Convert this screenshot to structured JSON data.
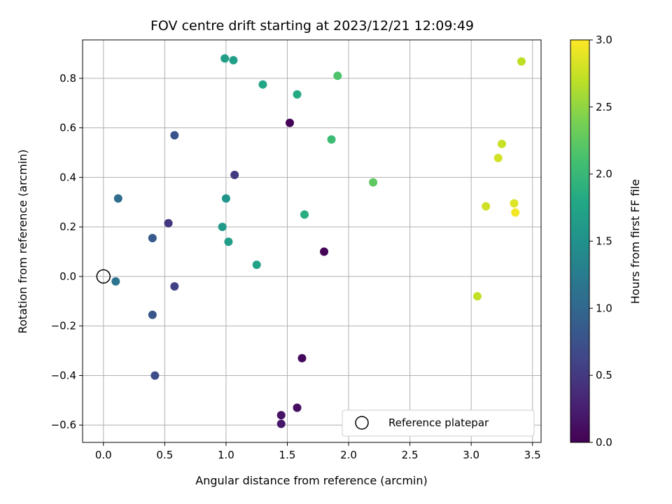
{
  "chart_data": {
    "type": "scatter",
    "title": "FOV centre drift starting at 2023/12/21 12:09:49",
    "xlabel": "Angular distance from reference (arcmin)",
    "ylabel": "Rotation from reference (arcmin)",
    "xlim": [
      -0.17,
      3.57
    ],
    "ylim": [
      -0.67,
      0.955
    ],
    "xticks": [
      0.0,
      0.5,
      1.0,
      1.5,
      2.0,
      2.5,
      3.0,
      3.5
    ],
    "xtick_labels": [
      "0.0",
      "0.5",
      "1.0",
      "1.5",
      "2.0",
      "2.5",
      "3.0",
      "3.5"
    ],
    "yticks": [
      -0.6,
      -0.4,
      -0.2,
      0.0,
      0.2,
      0.4,
      0.6,
      0.8
    ],
    "ytick_labels": [
      "−0.6",
      "−0.4",
      "−0.2",
      "0.0",
      "0.2",
      "0.4",
      "0.6",
      "0.8"
    ],
    "grid": true,
    "legend": {
      "location": "lower-right",
      "entries": [
        "Reference platepar"
      ]
    },
    "colormap": "viridis",
    "colorbar": {
      "label": "Hours from first FF file",
      "range": [
        0.0,
        3.0
      ],
      "ticks": [
        0.0,
        0.5,
        1.0,
        1.5,
        2.0,
        2.5,
        3.0
      ],
      "tick_labels": [
        "0.0",
        "0.5",
        "1.0",
        "1.5",
        "2.0",
        "2.5",
        "3.0"
      ]
    },
    "reference_point": {
      "name": "Reference platepar",
      "x": 0.0,
      "y": 0.0
    },
    "points": [
      {
        "x": 1.52,
        "y": 0.62,
        "c": 0.02
      },
      {
        "x": 1.8,
        "y": 0.1,
        "c": 0.04
      },
      {
        "x": 1.62,
        "y": -0.33,
        "c": 0.07
      },
      {
        "x": 1.58,
        "y": -0.53,
        "c": 0.11
      },
      {
        "x": 1.45,
        "y": -0.56,
        "c": 0.15
      },
      {
        "x": 1.45,
        "y": -0.595,
        "c": 0.19
      },
      {
        "x": 0.53,
        "y": 0.215,
        "c": 0.48
      },
      {
        "x": 1.07,
        "y": 0.41,
        "c": 0.52
      },
      {
        "x": 0.58,
        "y": -0.04,
        "c": 0.58
      },
      {
        "x": 0.42,
        "y": -0.4,
        "c": 0.7
      },
      {
        "x": 0.4,
        "y": -0.155,
        "c": 0.8
      },
      {
        "x": 0.4,
        "y": 0.155,
        "c": 0.85
      },
      {
        "x": 0.58,
        "y": 0.57,
        "c": 0.78
      },
      {
        "x": 0.12,
        "y": 0.315,
        "c": 1.05
      },
      {
        "x": 0.1,
        "y": -0.02,
        "c": 1.15
      },
      {
        "x": 1.0,
        "y": 0.315,
        "c": 1.55
      },
      {
        "x": 0.97,
        "y": 0.2,
        "c": 1.62
      },
      {
        "x": 1.02,
        "y": 0.14,
        "c": 1.65
      },
      {
        "x": 1.25,
        "y": 0.047,
        "c": 1.72
      },
      {
        "x": 0.99,
        "y": 0.88,
        "c": 1.67
      },
      {
        "x": 1.06,
        "y": 0.873,
        "c": 1.7
      },
      {
        "x": 1.3,
        "y": 0.775,
        "c": 1.78
      },
      {
        "x": 1.58,
        "y": 0.735,
        "c": 1.82
      },
      {
        "x": 1.64,
        "y": 0.25,
        "c": 1.85
      },
      {
        "x": 1.86,
        "y": 0.553,
        "c": 2.05
      },
      {
        "x": 1.91,
        "y": 0.81,
        "c": 2.15
      },
      {
        "x": 2.2,
        "y": 0.38,
        "c": 2.25
      },
      {
        "x": 3.05,
        "y": -0.08,
        "c": 2.72
      },
      {
        "x": 3.12,
        "y": 0.283,
        "c": 2.78
      },
      {
        "x": 3.22,
        "y": 0.478,
        "c": 2.8
      },
      {
        "x": 3.25,
        "y": 0.535,
        "c": 2.75
      },
      {
        "x": 3.41,
        "y": 0.868,
        "c": 2.7
      },
      {
        "x": 3.35,
        "y": 0.295,
        "c": 2.85
      },
      {
        "x": 3.36,
        "y": 0.258,
        "c": 2.95
      }
    ]
  }
}
